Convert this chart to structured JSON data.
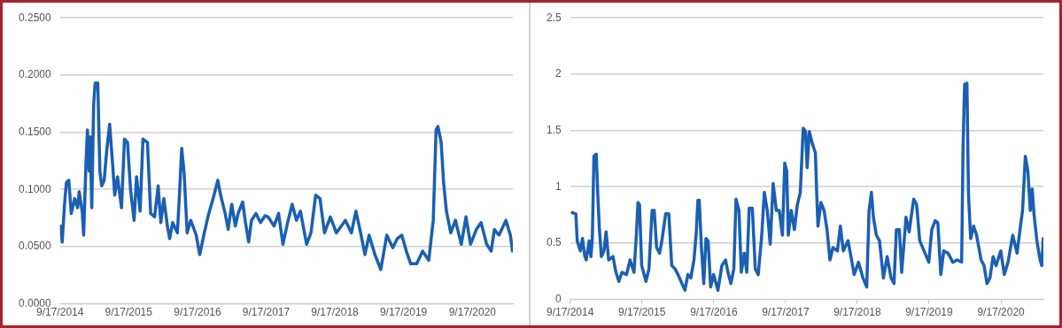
{
  "chart_data": [
    {
      "type": "line",
      "grid": "y",
      "legend": false,
      "marker": "none",
      "line_style": "solid",
      "xlim": [
        "2014-09-17",
        "2021-04-20"
      ],
      "xticks": [
        {
          "value": "2014-09-17",
          "label": "9/17/2014"
        },
        {
          "value": "2015-09-17",
          "label": "9/17/2015"
        },
        {
          "value": "2016-09-17",
          "label": "9/17/2016"
        },
        {
          "value": "2017-09-17",
          "label": "9/17/2017"
        },
        {
          "value": "2018-09-17",
          "label": "9/17/2018"
        },
        {
          "value": "2019-09-17",
          "label": "9/17/2019"
        },
        {
          "value": "2020-09-17",
          "label": "9/17/2020"
        }
      ],
      "ylim": [
        0,
        0.25
      ],
      "yticks": [
        {
          "value": 0,
          "label": "0.0000"
        },
        {
          "value": 0.05,
          "label": "0.0500"
        },
        {
          "value": 0.1,
          "label": "0.1000"
        },
        {
          "value": 0.15,
          "label": "0.1500"
        },
        {
          "value": 0.2,
          "label": "0.2000"
        },
        {
          "value": 0.25,
          "label": "0.2500"
        }
      ],
      "series": [
        {
          "color": "#1a5fb4",
          "x": [
            "2014-09-20",
            "2014-09-29",
            "2014-10-10",
            "2014-10-21",
            "2014-11-03",
            "2014-11-16",
            "2014-12-04",
            "2014-12-20",
            "2014-12-28",
            "2015-01-13",
            "2015-01-21",
            "2015-02-02",
            "2015-02-10",
            "2015-02-19",
            "2015-02-25",
            "2015-03-05",
            "2015-03-15",
            "2015-03-23",
            "2015-04-06",
            "2015-04-17",
            "2015-04-27",
            "2015-05-10",
            "2015-05-23",
            "2015-06-08",
            "2015-06-24",
            "2015-07-05",
            "2015-07-20",
            "2015-08-10",
            "2015-08-26",
            "2015-09-11",
            "2015-09-27",
            "2015-10-16",
            "2015-10-29",
            "2015-11-17",
            "2015-12-02",
            "2015-12-26",
            "2016-01-12",
            "2016-02-02",
            "2016-02-21",
            "2016-03-06",
            "2016-03-22",
            "2016-04-10",
            "2016-04-22",
            "2016-05-08",
            "2016-06-02",
            "2016-06-13",
            "2016-06-25",
            "2016-07-08",
            "2016-07-24",
            "2016-08-12",
            "2016-09-10",
            "2016-09-29",
            "2016-10-23",
            "2016-11-16",
            "2016-12-09",
            "2017-01-03",
            "2017-01-18",
            "2017-02-11",
            "2017-02-27",
            "2017-03-18",
            "2017-04-06",
            "2017-04-21",
            "2017-05-15",
            "2017-05-30",
            "2017-06-16",
            "2017-07-01",
            "2017-07-25",
            "2017-08-18",
            "2017-09-11",
            "2017-09-27",
            "2017-10-29",
            "2017-11-22",
            "2017-12-15",
            "2018-01-09",
            "2018-02-02",
            "2018-02-25",
            "2018-03-18",
            "2018-04-20",
            "2018-05-13",
            "2018-06-07",
            "2018-06-30",
            "2018-07-24",
            "2018-08-24",
            "2018-09-25",
            "2018-11-12",
            "2018-12-14",
            "2019-01-07",
            "2019-02-01",
            "2019-02-24",
            "2019-03-18",
            "2019-04-18",
            "2019-05-19",
            "2019-06-20",
            "2019-07-22",
            "2019-08-15",
            "2019-09-08",
            "2019-10-02",
            "2019-10-25",
            "2019-11-26",
            "2019-12-28",
            "2020-01-29",
            "2020-02-22",
            "2020-03-08",
            "2020-03-18",
            "2020-04-04",
            "2020-04-17",
            "2020-05-02",
            "2020-05-25",
            "2020-06-19",
            "2020-07-20",
            "2020-08-14",
            "2020-09-07",
            "2020-10-08",
            "2020-11-02",
            "2020-12-02",
            "2020-12-26",
            "2021-01-12",
            "2021-02-05",
            "2021-02-28",
            "2021-03-14",
            "2021-04-07",
            "2021-04-18"
          ],
          "values": [
            0.068,
            0.054,
            0.084,
            0.106,
            0.108,
            0.079,
            0.092,
            0.084,
            0.098,
            0.081,
            0.06,
            0.122,
            0.152,
            0.116,
            0.146,
            0.084,
            0.174,
            0.193,
            0.193,
            0.116,
            0.103,
            0.108,
            0.133,
            0.157,
            0.122,
            0.095,
            0.111,
            0.084,
            0.144,
            0.141,
            0.1,
            0.073,
            0.111,
            0.081,
            0.144,
            0.141,
            0.079,
            0.076,
            0.103,
            0.071,
            0.092,
            0.068,
            0.057,
            0.071,
            0.062,
            0.095,
            0.136,
            0.114,
            0.062,
            0.073,
            0.06,
            0.043,
            0.062,
            0.079,
            0.092,
            0.108,
            0.095,
            0.079,
            0.065,
            0.087,
            0.068,
            0.079,
            0.089,
            0.071,
            0.054,
            0.073,
            0.079,
            0.071,
            0.077,
            0.076,
            0.068,
            0.079,
            0.052,
            0.071,
            0.087,
            0.073,
            0.081,
            0.052,
            0.062,
            0.095,
            0.092,
            0.062,
            0.076,
            0.062,
            0.073,
            0.062,
            0.081,
            0.062,
            0.043,
            0.06,
            0.043,
            0.03,
            0.06,
            0.049,
            0.057,
            0.06,
            0.046,
            0.035,
            0.035,
            0.046,
            0.038,
            0.073,
            0.152,
            0.155,
            0.141,
            0.106,
            0.081,
            0.062,
            0.073,
            0.052,
            0.076,
            0.052,
            0.065,
            0.071,
            0.052,
            0.046,
            0.065,
            0.06,
            0.068,
            0.073,
            0.06,
            0.046
          ]
        }
      ]
    },
    {
      "type": "line",
      "grid": "y",
      "legend": false,
      "marker": "none",
      "line_style": "solid",
      "xlim": [
        "2014-09-17",
        "2021-04-21"
      ],
      "xticks": [
        {
          "value": "2014-09-17",
          "label": "9/17/2014"
        },
        {
          "value": "2015-09-17",
          "label": "9/17/2015"
        },
        {
          "value": "2016-09-17",
          "label": "9/17/2016"
        },
        {
          "value": "2017-09-17",
          "label": "9/17/2017"
        },
        {
          "value": "2018-09-17",
          "label": "9/17/2018"
        },
        {
          "value": "2019-09-17",
          "label": "9/17/2019"
        },
        {
          "value": "2020-09-17",
          "label": "9/17/2020"
        }
      ],
      "ylim": [
        0,
        2.5
      ],
      "yticks": [
        0,
        0.5,
        1,
        1.5,
        2,
        2.5
      ],
      "series": [
        {
          "color": "#1a5fb4",
          "x": [
            "2014-09-28",
            "2014-10-16",
            "2014-10-23",
            "2014-11-08",
            "2014-11-19",
            "2014-12-01",
            "2014-12-08",
            "2014-12-23",
            "2014-12-28",
            "2015-01-01",
            "2015-01-08",
            "2015-01-16",
            "2015-01-28",
            "2015-02-05",
            "2015-02-13",
            "2015-02-23",
            "2015-03-08",
            "2015-03-19",
            "2015-04-01",
            "2015-04-23",
            "2015-05-08",
            "2015-05-23",
            "2015-06-08",
            "2015-07-01",
            "2015-07-19",
            "2015-08-08",
            "2015-08-20",
            "2015-08-28",
            "2015-09-05",
            "2015-09-16",
            "2015-10-08",
            "2015-10-23",
            "2015-11-08",
            "2015-11-19",
            "2015-12-01",
            "2015-12-16",
            "2015-12-28",
            "2016-01-16",
            "2016-02-01",
            "2016-02-16",
            "2016-03-04",
            "2016-03-19",
            "2016-04-08",
            "2016-04-23",
            "2016-05-08",
            "2016-05-23",
            "2016-06-08",
            "2016-06-19",
            "2016-06-28",
            "2016-07-05",
            "2016-07-16",
            "2016-07-28",
            "2016-08-08",
            "2016-08-19",
            "2016-09-01",
            "2016-09-16",
            "2016-10-08",
            "2016-10-28",
            "2016-11-16",
            "2016-11-28",
            "2016-12-13",
            "2016-12-28",
            "2017-01-08",
            "2017-01-23",
            "2017-02-04",
            "2017-02-19",
            "2017-03-04",
            "2017-03-16",
            "2017-04-01",
            "2017-04-16",
            "2017-05-01",
            "2017-05-19",
            "2017-06-01",
            "2017-06-16",
            "2017-07-01",
            "2017-07-16",
            "2017-08-01",
            "2017-08-16",
            "2017-09-01",
            "2017-09-13",
            "2017-09-23",
            "2017-10-01",
            "2017-10-16",
            "2017-11-01",
            "2017-11-16",
            "2017-12-01",
            "2017-12-16",
            "2017-12-28",
            "2018-01-05",
            "2018-01-16",
            "2018-02-01",
            "2018-02-16",
            "2018-02-23",
            "2018-03-01",
            "2018-03-16",
            "2018-04-01",
            "2018-04-16",
            "2018-05-01",
            "2018-05-16",
            "2018-06-08",
            "2018-06-23",
            "2018-07-08",
            "2018-08-01",
            "2018-08-16",
            "2018-09-01",
            "2018-09-23",
            "2018-10-16",
            "2018-11-04",
            "2018-11-16",
            "2018-11-28",
            "2018-12-08",
            "2018-12-23",
            "2019-01-08",
            "2019-01-28",
            "2019-02-16",
            "2019-03-08",
            "2019-03-23",
            "2019-04-04",
            "2019-04-19",
            "2019-05-01",
            "2019-05-23",
            "2019-06-08",
            "2019-07-01",
            "2019-07-16",
            "2019-08-01",
            "2019-08-23",
            "2019-09-16",
            "2019-10-01",
            "2019-10-19",
            "2019-11-01",
            "2019-11-16",
            "2019-12-01",
            "2019-12-23",
            "2020-01-16",
            "2020-02-08",
            "2020-03-01",
            "2020-03-08",
            "2020-03-16",
            "2020-03-28",
            "2020-04-05",
            "2020-04-16",
            "2020-05-01",
            "2020-05-16",
            "2020-06-08",
            "2020-06-23",
            "2020-07-08",
            "2020-07-23",
            "2020-08-08",
            "2020-08-23",
            "2020-09-16",
            "2020-10-04",
            "2020-10-23",
            "2020-11-16",
            "2020-12-08",
            "2020-12-23",
            "2021-01-05",
            "2021-01-19",
            "2021-02-01",
            "2021-02-13",
            "2021-02-23",
            "2021-03-04",
            "2021-03-19",
            "2021-04-04",
            "2021-04-13",
            "2021-04-20"
          ],
          "values": [
            0.77,
            0.76,
            0.52,
            0.43,
            0.54,
            0.38,
            0.35,
            0.52,
            0.43,
            0.38,
            0.54,
            1.27,
            1.29,
            0.92,
            0.62,
            0.38,
            0.43,
            0.6,
            0.35,
            0.38,
            0.24,
            0.16,
            0.24,
            0.22,
            0.35,
            0.24,
            0.57,
            0.86,
            0.84,
            0.3,
            0.16,
            0.27,
            0.79,
            0.79,
            0.46,
            0.41,
            0.52,
            0.76,
            0.76,
            0.3,
            0.27,
            0.22,
            0.14,
            0.08,
            0.22,
            0.19,
            0.35,
            0.57,
            0.88,
            0.88,
            0.46,
            0.14,
            0.54,
            0.52,
            0.11,
            0.22,
            0.08,
            0.3,
            0.35,
            0.24,
            0.14,
            0.27,
            0.89,
            0.79,
            0.24,
            0.41,
            0.24,
            0.81,
            0.81,
            0.27,
            0.22,
            0.57,
            0.95,
            0.79,
            0.49,
            1.03,
            0.79,
            0.79,
            0.57,
            1.21,
            1.14,
            0.57,
            0.79,
            0.62,
            0.84,
            0.95,
            1.52,
            1.49,
            1.17,
            1.49,
            1.38,
            1.3,
            0.92,
            0.65,
            0.86,
            0.79,
            0.62,
            0.35,
            0.46,
            0.43,
            0.65,
            0.43,
            0.52,
            0.38,
            0.22,
            0.33,
            0.19,
            0.11,
            0.79,
            0.95,
            0.73,
            0.57,
            0.52,
            0.19,
            0.38,
            0.19,
            0.14,
            0.62,
            0.62,
            0.24,
            0.73,
            0.6,
            0.89,
            0.84,
            0.52,
            0.43,
            0.33,
            0.62,
            0.7,
            0.68,
            0.22,
            0.43,
            0.41,
            0.33,
            0.35,
            0.33,
            1.33,
            1.91,
            1.92,
            0.92,
            0.54,
            0.65,
            0.57,
            0.35,
            0.3,
            0.14,
            0.19,
            0.38,
            0.3,
            0.43,
            0.22,
            0.33,
            0.57,
            0.41,
            0.62,
            0.79,
            1.27,
            1.14,
            0.79,
            0.98,
            0.76,
            0.52,
            0.35,
            0.3,
            0.54
          ]
        }
      ]
    }
  ]
}
